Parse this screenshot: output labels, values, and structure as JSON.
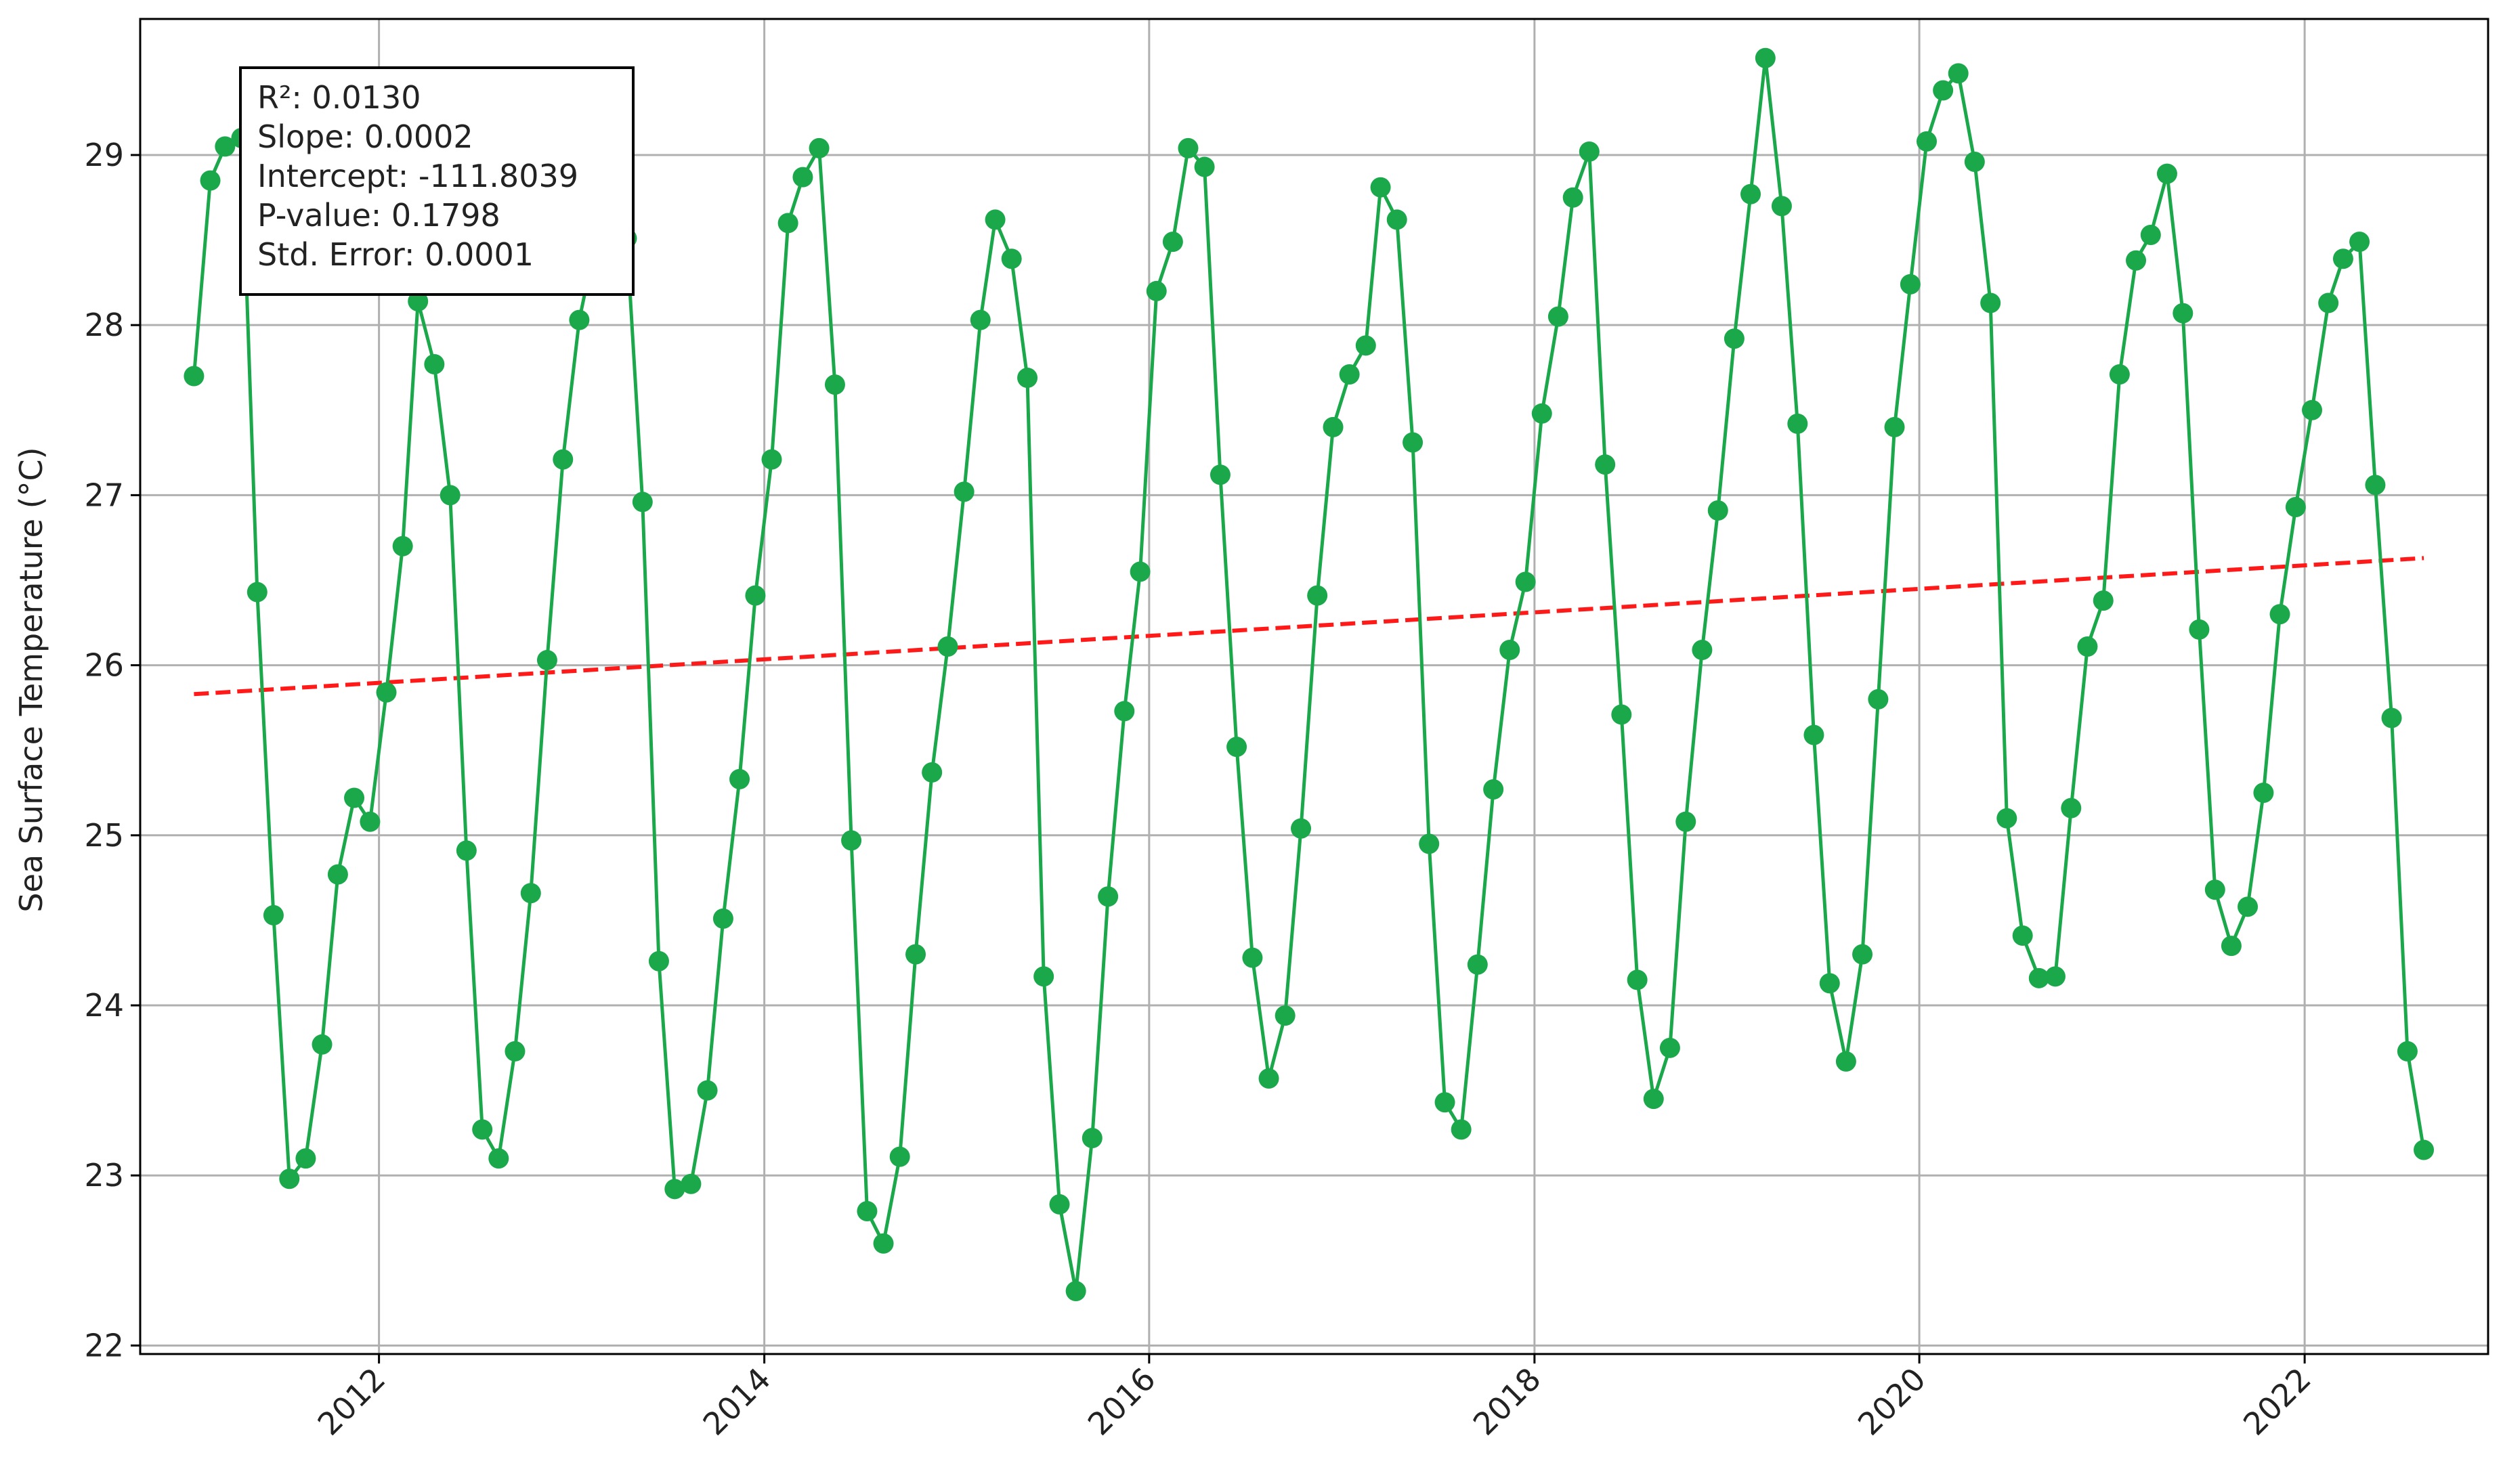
{
  "chart_data": {
    "type": "line",
    "title": "",
    "xlabel": "",
    "ylabel": "Sea Surface Temperature (°C)",
    "x_axis": {
      "kind": "date",
      "range": [
        "2010-10-05",
        "2022-12-15"
      ],
      "tick_labels": [
        "2012",
        "2014",
        "2016",
        "2018",
        "2020",
        "2022"
      ]
    },
    "y_axis": {
      "range": [
        21.95,
        29.8
      ],
      "tick_labels": [
        "22",
        "23",
        "24",
        "25",
        "26",
        "27",
        "28",
        "29"
      ]
    },
    "grid": true,
    "legend": "none",
    "colors": {
      "series": "#1aa84b",
      "trend": "#ff1a1a"
    },
    "stats_box": [
      {
        "label": "R²",
        "value": "0.0130",
        "text": "R²: 0.0130"
      },
      {
        "label": "Slope",
        "value": "0.0002",
        "text": "Slope: 0.0002"
      },
      {
        "label": "Intercept",
        "value": "-111.8039",
        "text": "Intercept: -111.8039"
      },
      {
        "label": "P-value",
        "value": "0.1798",
        "text": "P-value: 0.1798"
      },
      {
        "label": "Std. Error",
        "value": "0.0001",
        "text": "Std. Error: 0.0001"
      }
    ],
    "series": [
      {
        "style": "line+markers",
        "points": [
          [
            "2011-01-15",
            27.7
          ],
          [
            "2011-02-15",
            28.85
          ],
          [
            "2011-03-15",
            29.05
          ],
          [
            "2011-04-15",
            29.1
          ],
          [
            "2011-05-15",
            26.43
          ],
          [
            "2011-06-15",
            24.53
          ],
          [
            "2011-07-15",
            22.98
          ],
          [
            "2011-08-15",
            23.1
          ],
          [
            "2011-09-15",
            23.77
          ],
          [
            "2011-10-15",
            24.77
          ],
          [
            "2011-11-15",
            25.22
          ],
          [
            "2011-12-15",
            25.08
          ],
          [
            "2012-01-15",
            25.84
          ],
          [
            "2012-02-15",
            26.7
          ],
          [
            "2012-03-15",
            28.14
          ],
          [
            "2012-04-15",
            27.77
          ],
          [
            "2012-05-15",
            27.0
          ],
          [
            "2012-06-15",
            24.91
          ],
          [
            "2012-07-15",
            23.27
          ],
          [
            "2012-08-15",
            23.1
          ],
          [
            "2012-09-15",
            23.73
          ],
          [
            "2012-10-15",
            24.66
          ],
          [
            "2012-11-15",
            26.03
          ],
          [
            "2012-12-15",
            27.21
          ],
          [
            "2013-01-15",
            28.03
          ],
          [
            "2013-02-15",
            28.49
          ],
          [
            "2013-03-15",
            29.19
          ],
          [
            "2013-04-15",
            28.51
          ],
          [
            "2013-05-15",
            26.96
          ],
          [
            "2013-06-15",
            24.26
          ],
          [
            "2013-07-15",
            22.92
          ],
          [
            "2013-08-15",
            22.95
          ],
          [
            "2013-09-15",
            23.5
          ],
          [
            "2013-10-15",
            24.51
          ],
          [
            "2013-11-15",
            25.33
          ],
          [
            "2013-12-15",
            26.41
          ],
          [
            "2014-01-15",
            27.21
          ],
          [
            "2014-02-15",
            28.6
          ],
          [
            "2014-03-15",
            28.87
          ],
          [
            "2014-04-15",
            29.04
          ],
          [
            "2014-05-15",
            27.65
          ],
          [
            "2014-06-15",
            24.97
          ],
          [
            "2014-07-15",
            22.79
          ],
          [
            "2014-08-15",
            22.6
          ],
          [
            "2014-09-15",
            23.11
          ],
          [
            "2014-10-15",
            24.3
          ],
          [
            "2014-11-15",
            25.37
          ],
          [
            "2014-12-15",
            26.11
          ],
          [
            "2015-01-15",
            27.02
          ],
          [
            "2015-02-15",
            28.03
          ],
          [
            "2015-03-15",
            28.62
          ],
          [
            "2015-04-15",
            28.39
          ],
          [
            "2015-05-15",
            27.69
          ],
          [
            "2015-06-15",
            24.17
          ],
          [
            "2015-07-15",
            22.83
          ],
          [
            "2015-08-15",
            22.32
          ],
          [
            "2015-09-15",
            23.22
          ],
          [
            "2015-10-15",
            24.64
          ],
          [
            "2015-11-15",
            25.73
          ],
          [
            "2015-12-15",
            26.55
          ],
          [
            "2016-01-15",
            28.2
          ],
          [
            "2016-02-15",
            28.49
          ],
          [
            "2016-03-15",
            29.04
          ],
          [
            "2016-04-15",
            28.93
          ],
          [
            "2016-05-15",
            27.12
          ],
          [
            "2016-06-15",
            25.52
          ],
          [
            "2016-07-15",
            24.28
          ],
          [
            "2016-08-15",
            23.57
          ],
          [
            "2016-09-15",
            23.94
          ],
          [
            "2016-10-15",
            25.04
          ],
          [
            "2016-11-15",
            26.41
          ],
          [
            "2016-12-15",
            27.4
          ],
          [
            "2017-01-15",
            27.71
          ],
          [
            "2017-02-15",
            27.88
          ],
          [
            "2017-03-15",
            28.81
          ],
          [
            "2017-04-15",
            28.62
          ],
          [
            "2017-05-15",
            27.31
          ],
          [
            "2017-06-15",
            24.95
          ],
          [
            "2017-07-15",
            23.43
          ],
          [
            "2017-08-15",
            23.27
          ],
          [
            "2017-09-15",
            24.24
          ],
          [
            "2017-10-15",
            25.27
          ],
          [
            "2017-11-15",
            26.09
          ],
          [
            "2017-12-15",
            26.49
          ],
          [
            "2018-01-15",
            27.48
          ],
          [
            "2018-02-15",
            28.05
          ],
          [
            "2018-03-15",
            28.75
          ],
          [
            "2018-04-15",
            29.02
          ],
          [
            "2018-05-15",
            27.18
          ],
          [
            "2018-06-15",
            25.71
          ],
          [
            "2018-07-15",
            24.15
          ],
          [
            "2018-08-15",
            23.45
          ],
          [
            "2018-09-15",
            23.75
          ],
          [
            "2018-10-15",
            25.08
          ],
          [
            "2018-11-15",
            26.09
          ],
          [
            "2018-12-15",
            26.91
          ],
          [
            "2019-01-15",
            27.92
          ],
          [
            "2019-02-15",
            28.77
          ],
          [
            "2019-03-15",
            29.57
          ],
          [
            "2019-04-15",
            28.7
          ],
          [
            "2019-05-15",
            27.42
          ],
          [
            "2019-06-15",
            25.59
          ],
          [
            "2019-07-15",
            24.13
          ],
          [
            "2019-08-15",
            23.67
          ],
          [
            "2019-09-15",
            24.3
          ],
          [
            "2019-10-15",
            25.8
          ],
          [
            "2019-11-15",
            27.4
          ],
          [
            "2019-12-15",
            28.24
          ],
          [
            "2020-01-15",
            29.08
          ],
          [
            "2020-02-15",
            29.38
          ],
          [
            "2020-03-15",
            29.48
          ],
          [
            "2020-04-15",
            28.96
          ],
          [
            "2020-05-15",
            28.13
          ],
          [
            "2020-06-15",
            25.1
          ],
          [
            "2020-07-15",
            24.41
          ],
          [
            "2020-08-15",
            24.16
          ],
          [
            "2020-09-15",
            24.17
          ],
          [
            "2020-10-15",
            25.16
          ],
          [
            "2020-11-15",
            26.11
          ],
          [
            "2020-12-15",
            26.38
          ],
          [
            "2021-01-15",
            27.71
          ],
          [
            "2021-02-15",
            28.38
          ],
          [
            "2021-03-15",
            28.53
          ],
          [
            "2021-04-15",
            28.89
          ],
          [
            "2021-05-15",
            28.07
          ],
          [
            "2021-06-15",
            26.21
          ],
          [
            "2021-07-15",
            24.68
          ],
          [
            "2021-08-15",
            24.35
          ],
          [
            "2021-09-15",
            24.58
          ],
          [
            "2021-10-15",
            25.25
          ],
          [
            "2021-11-15",
            26.3
          ],
          [
            "2021-12-15",
            26.93
          ],
          [
            "2022-01-15",
            27.5
          ],
          [
            "2022-02-15",
            28.13
          ],
          [
            "2022-03-15",
            28.39
          ],
          [
            "2022-04-15",
            28.49
          ],
          [
            "2022-05-15",
            27.06
          ],
          [
            "2022-06-15",
            25.69
          ],
          [
            "2022-07-15",
            23.73
          ],
          [
            "2022-08-15",
            23.15
          ]
        ]
      }
    ],
    "trendline": {
      "style": "dashed",
      "points": [
        [
          "2011-01-15",
          25.83
        ],
        [
          "2022-08-15",
          26.63
        ]
      ]
    }
  }
}
